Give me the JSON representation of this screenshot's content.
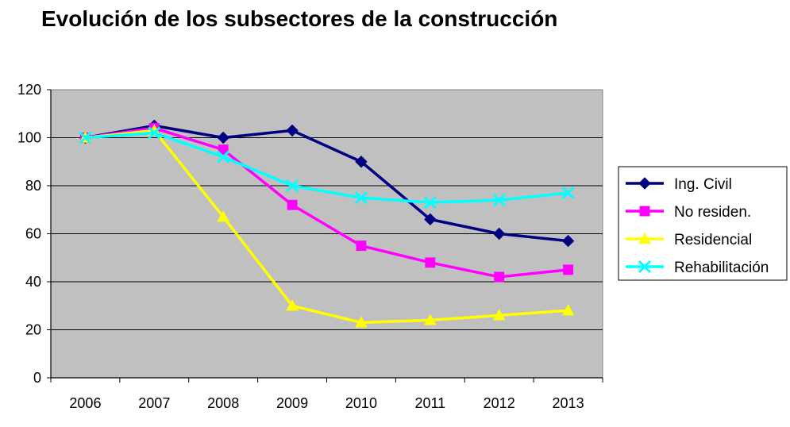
{
  "chart_data": {
    "type": "line",
    "title": "Evolución de los subsectores de la construcción",
    "xlabel": "",
    "ylabel": "",
    "categories": [
      "2006",
      "2007",
      "2008",
      "2009",
      "2010",
      "2011",
      "2012",
      "2013"
    ],
    "ylim": [
      0,
      120
    ],
    "yticks": [
      0,
      20,
      40,
      60,
      80,
      100,
      120
    ],
    "grid": true,
    "legend_position": "right",
    "plot_background": "#c0c0c0",
    "series": [
      {
        "name": "Ing. Civil",
        "color": "#000080",
        "marker": "diamond",
        "values": [
          100,
          105,
          100,
          103,
          90,
          66,
          60,
          57
        ]
      },
      {
        "name": "No residen.",
        "color": "#ff00ff",
        "marker": "square",
        "values": [
          100,
          104,
          95,
          72,
          55,
          48,
          42,
          45
        ]
      },
      {
        "name": "Residencial",
        "color": "#ffff00",
        "marker": "triangle",
        "values": [
          100,
          103,
          67,
          30,
          23,
          24,
          26,
          28
        ]
      },
      {
        "name": "Rehabilitación",
        "color": "#00ffff",
        "marker": "x",
        "values": [
          100,
          102,
          92,
          80,
          75,
          73,
          74,
          77
        ]
      }
    ]
  }
}
